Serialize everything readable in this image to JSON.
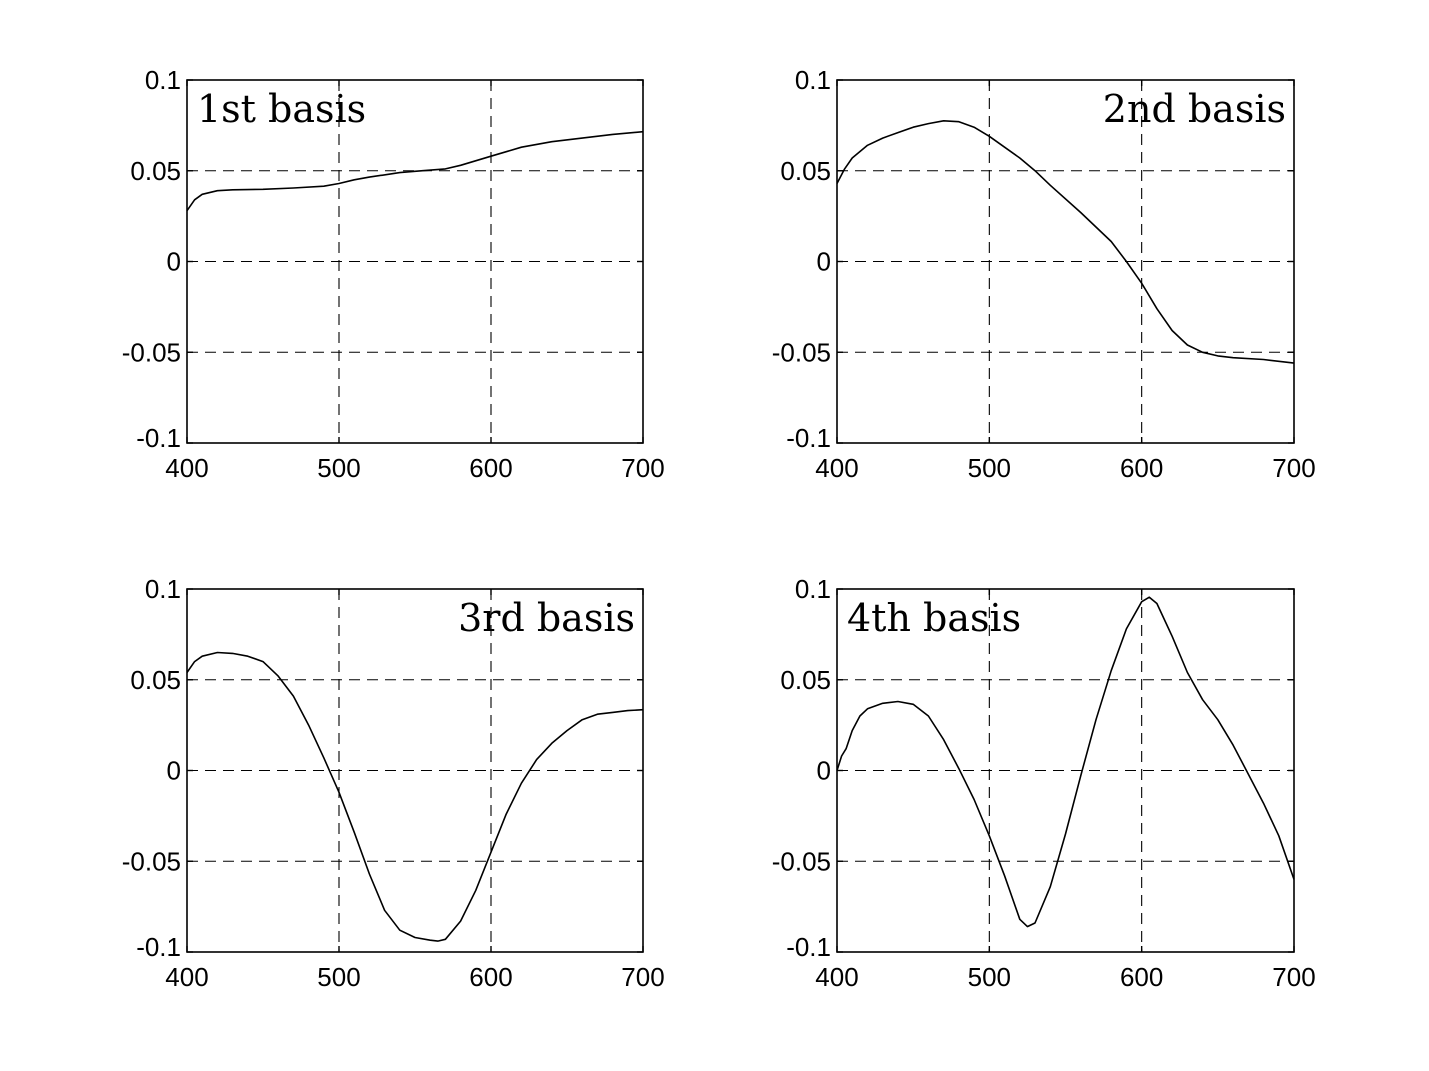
{
  "chart_data": [
    {
      "type": "line",
      "title": "1st basis",
      "title_position": "top-left",
      "xlabel": "",
      "ylabel": "",
      "xlim": [
        400,
        700
      ],
      "ylim": [
        -0.1,
        0.1
      ],
      "grid": true,
      "xticks": [
        "400",
        "500",
        "600",
        "700"
      ],
      "yticks": [
        "0.1",
        "0.05",
        "0",
        "-0.05",
        "-0.1"
      ],
      "x": [
        400,
        405,
        410,
        420,
        430,
        450,
        470,
        490,
        500,
        510,
        520,
        540,
        555,
        570,
        580,
        600,
        620,
        640,
        660,
        680,
        700
      ],
      "y": [
        0.028,
        0.034,
        0.037,
        0.039,
        0.0395,
        0.0398,
        0.0405,
        0.0415,
        0.043,
        0.045,
        0.0465,
        0.049,
        0.05,
        0.051,
        0.053,
        0.058,
        0.063,
        0.066,
        0.068,
        0.07,
        0.0715
      ]
    },
    {
      "type": "line",
      "title": "2nd basis",
      "title_position": "top-right",
      "xlabel": "",
      "ylabel": "",
      "xlim": [
        400,
        700
      ],
      "ylim": [
        -0.1,
        0.1
      ],
      "grid": true,
      "xticks": [
        "400",
        "500",
        "600",
        "700"
      ],
      "yticks": [
        "0.1",
        "0.05",
        "0",
        "-0.05",
        "-0.1"
      ],
      "x": [
        400,
        405,
        410,
        420,
        430,
        440,
        450,
        460,
        470,
        480,
        490,
        500,
        510,
        520,
        530,
        540,
        560,
        580,
        590,
        600,
        610,
        620,
        630,
        640,
        650,
        660,
        680,
        700
      ],
      "y": [
        0.043,
        0.051,
        0.057,
        0.064,
        0.068,
        0.071,
        0.074,
        0.076,
        0.0775,
        0.077,
        0.074,
        0.069,
        0.063,
        0.057,
        0.05,
        0.042,
        0.027,
        0.011,
        0.0,
        -0.012,
        -0.026,
        -0.038,
        -0.046,
        -0.05,
        -0.052,
        -0.053,
        -0.054,
        -0.056
      ]
    },
    {
      "type": "line",
      "title": "3rd basis",
      "title_position": "top-right",
      "xlabel": "",
      "ylabel": "",
      "xlim": [
        400,
        700
      ],
      "ylim": [
        -0.1,
        0.1
      ],
      "grid": true,
      "xticks": [
        "400",
        "500",
        "600",
        "700"
      ],
      "yticks": [
        "0.1",
        "0.05",
        "0",
        "-0.05",
        "-0.1"
      ],
      "x": [
        400,
        405,
        410,
        420,
        430,
        440,
        450,
        460,
        470,
        480,
        490,
        500,
        510,
        520,
        530,
        540,
        550,
        560,
        565,
        570,
        580,
        590,
        600,
        610,
        620,
        630,
        640,
        650,
        660,
        670,
        680,
        690,
        700
      ],
      "y": [
        0.054,
        0.06,
        0.063,
        0.065,
        0.0645,
        0.063,
        0.06,
        0.052,
        0.041,
        0.025,
        0.007,
        -0.012,
        -0.034,
        -0.057,
        -0.077,
        -0.088,
        -0.092,
        -0.0935,
        -0.094,
        -0.093,
        -0.083,
        -0.066,
        -0.045,
        -0.024,
        -0.007,
        0.006,
        0.015,
        0.022,
        0.028,
        0.031,
        0.032,
        0.033,
        0.0335
      ]
    },
    {
      "type": "line",
      "title": "4th basis",
      "title_position": "top-left",
      "xlabel": "",
      "ylabel": "",
      "xlim": [
        400,
        700
      ],
      "ylim": [
        -0.1,
        0.1
      ],
      "grid": true,
      "xticks": [
        "400",
        "500",
        "600",
        "700"
      ],
      "yticks": [
        "0.1",
        "0.05",
        "0",
        "-0.05",
        "-0.1"
      ],
      "x": [
        400,
        403,
        406,
        410,
        415,
        420,
        430,
        440,
        450,
        460,
        470,
        480,
        490,
        500,
        510,
        520,
        525,
        530,
        540,
        550,
        560,
        570,
        580,
        590,
        600,
        605,
        610,
        620,
        630,
        640,
        650,
        660,
        670,
        680,
        690,
        700
      ],
      "y": [
        0.0,
        0.008,
        0.012,
        0.022,
        0.03,
        0.034,
        0.037,
        0.038,
        0.0365,
        0.03,
        0.017,
        0.001,
        -0.016,
        -0.036,
        -0.058,
        -0.082,
        -0.086,
        -0.084,
        -0.064,
        -0.035,
        -0.003,
        0.028,
        0.055,
        0.078,
        0.093,
        0.0955,
        0.092,
        0.074,
        0.054,
        0.039,
        0.028,
        0.014,
        -0.002,
        -0.018,
        -0.036,
        -0.06
      ]
    }
  ]
}
